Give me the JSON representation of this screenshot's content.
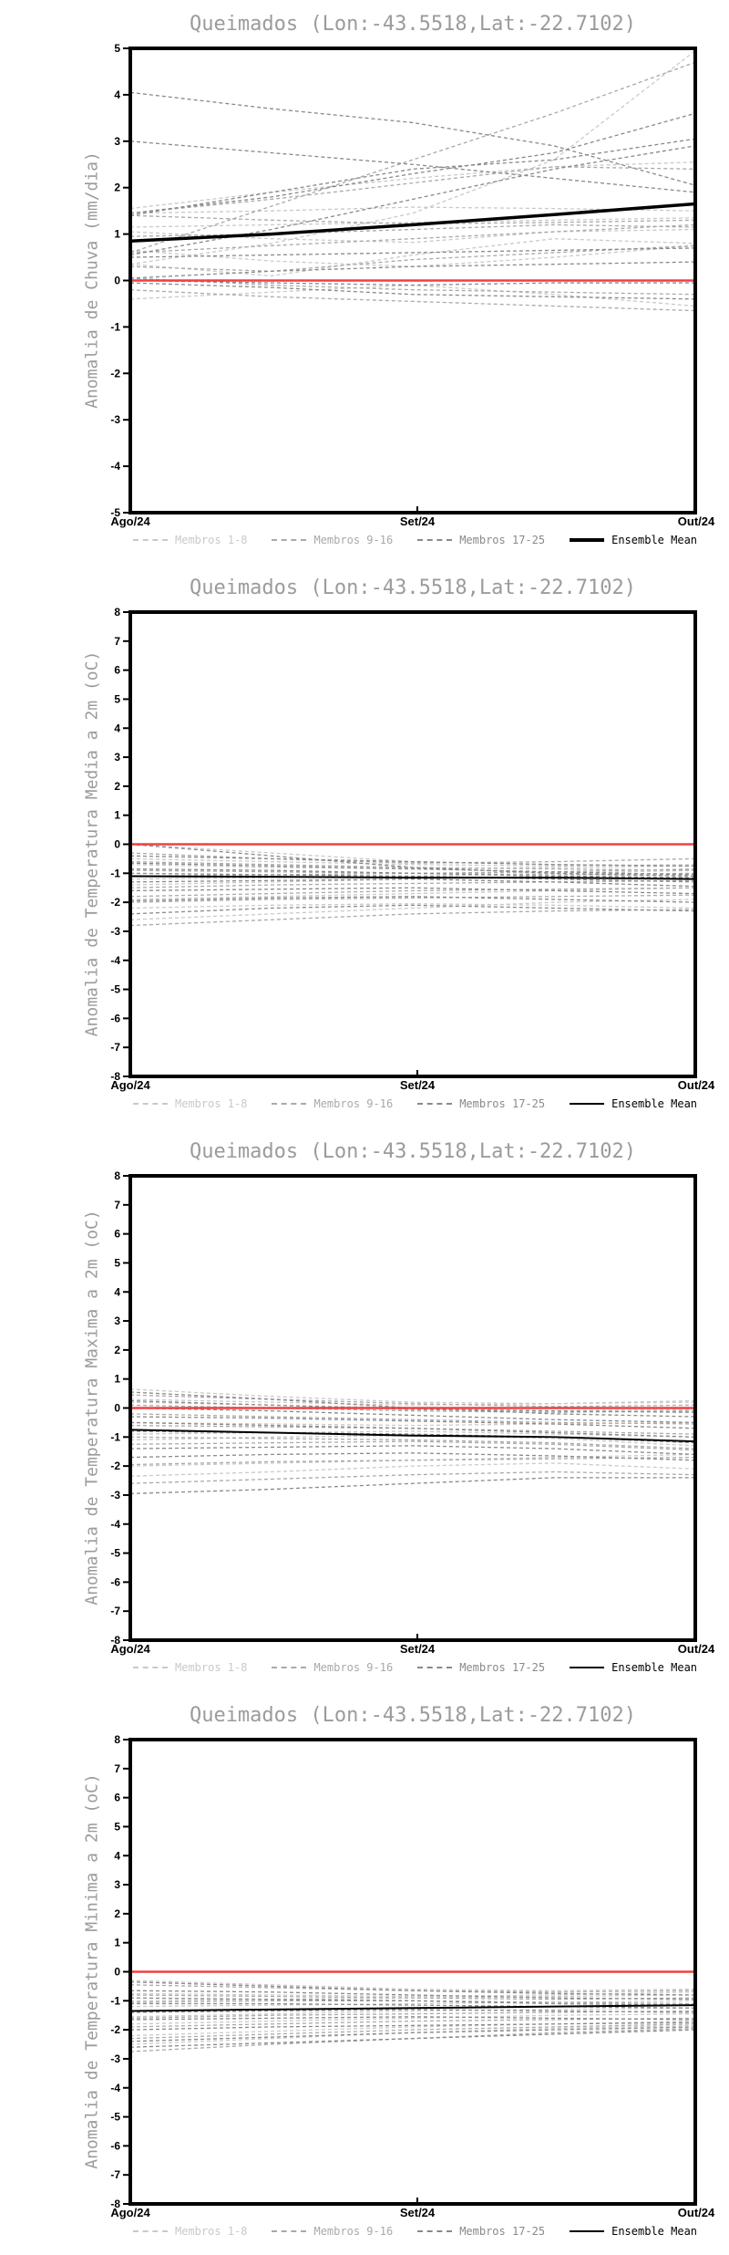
{
  "page": {
    "background": "#ffffff"
  },
  "colors": {
    "title": "#9b9b9b",
    "frame": "#000000",
    "tick_text": "#000000",
    "zero_line": "#f0403f",
    "members_1_8": "#c9c9c9",
    "members_9_16": "#a9a9a9",
    "members_17_25": "#898989",
    "ensemble_mean": "#000000"
  },
  "legend": {
    "items": [
      {
        "label": "Membros 1-8",
        "color": "#c9c9c9",
        "style": "dashed"
      },
      {
        "label": "Membros 9-16",
        "color": "#a9a9a9",
        "style": "dashed"
      },
      {
        "label": "Membros 17-25",
        "color": "#898989",
        "style": "dashed"
      },
      {
        "label": "Ensemble Mean",
        "color": "#000000",
        "style": "solid"
      }
    ]
  },
  "chart_data": [
    {
      "type": "line",
      "title": "Queimados (Lon:-43.5518,Lat:-22.7102)",
      "ylabel": "Anomalia de Chuva (mm/dia)",
      "ylim": [
        -5,
        5
      ],
      "ytick_step": 1,
      "x_ticklabels": [
        "Ago/24",
        "Set/24",
        "Out/24"
      ],
      "x_tick_pos": [
        0,
        0.508,
        1
      ],
      "zero_line": 0,
      "grid": false,
      "legend_position": "bottom",
      "mean_width": 3.5,
      "groups": [
        {
          "name": "Membros 1-8",
          "color": "#c9c9c9",
          "lines": [
            [
              1.55,
              1.9,
              2.2,
              2.45,
              2.55
            ],
            [
              1.45,
              1.5,
              1.58,
              1.55,
              1.5
            ],
            [
              0.35,
              0.8,
              1.45,
              2.6,
              4.95
            ],
            [
              1.15,
              1.2,
              1.25,
              1.3,
              1.35
            ],
            [
              1.05,
              0.9,
              0.82,
              1.05,
              1.1
            ],
            [
              0.65,
              0.42,
              0.3,
              0.5,
              0.75
            ],
            [
              0.35,
              0.1,
              0.55,
              0.9,
              0.8
            ],
            [
              -0.4,
              -0.25,
              -0.1,
              -0.3,
              -0.55
            ]
          ]
        },
        {
          "name": "Membros 9-16",
          "color": "#a9a9a9",
          "lines": [
            [
              1.45,
              1.75,
              2.1,
              2.45,
              2.4
            ],
            [
              1.4,
              1.3,
              1.22,
              1.25,
              1.3
            ],
            [
              0.6,
              1.6,
              2.6,
              3.6,
              4.7
            ],
            [
              0.95,
              1.0,
              1.1,
              1.2,
              1.15
            ],
            [
              0.6,
              0.75,
              0.9,
              1.05,
              1.2
            ],
            [
              0.3,
              0.2,
              0.45,
              0.6,
              0.75
            ],
            [
              0.05,
              -0.1,
              -0.2,
              -0.25,
              -0.3
            ],
            [
              -0.2,
              -0.35,
              -0.45,
              -0.55,
              -0.65
            ]
          ]
        },
        {
          "name": "Membros 17-25",
          "color": "#898989",
          "lines": [
            [
              4.05,
              3.7,
              3.4,
              2.9,
              2.05
            ],
            [
              3.0,
              2.75,
              2.5,
              2.2,
              1.9
            ],
            [
              1.45,
              1.8,
              2.3,
              2.75,
              3.6
            ],
            [
              1.4,
              1.9,
              2.4,
              2.6,
              3.05
            ],
            [
              0.55,
              1.1,
              1.75,
              2.4,
              2.9
            ],
            [
              0.5,
              0.55,
              0.6,
              0.65,
              0.7
            ],
            [
              0.05,
              0.2,
              0.3,
              0.35,
              0.4
            ],
            [
              0.0,
              -0.05,
              -0.1,
              -0.05,
              -0.05
            ],
            [
              -0.05,
              -0.15,
              -0.3,
              -0.35,
              -0.4
            ]
          ]
        }
      ],
      "mean": {
        "name": "Ensemble Mean",
        "color": "#000000",
        "values": [
          0.85,
          1.0,
          1.2,
          1.42,
          1.65
        ]
      }
    },
    {
      "type": "line",
      "title": "Queimados (Lon:-43.5518,Lat:-22.7102)",
      "ylabel": "Anomalia de Temperatura Media a 2m (oC)",
      "ylim": [
        -8,
        8
      ],
      "ytick_step": 1,
      "x_ticklabels": [
        "Ago/24",
        "Set/24",
        "Out/24"
      ],
      "x_tick_pos": [
        0,
        0.508,
        1
      ],
      "zero_line": 0,
      "grid": false,
      "legend_position": "bottom",
      "mean_width": 2,
      "groups": [
        {
          "name": "Membros 1-8",
          "color": "#c9c9c9",
          "lines": [
            [
              0.0,
              -0.3,
              -0.6,
              -0.7,
              -0.75
            ],
            [
              -0.5,
              -0.6,
              -0.7,
              -0.75,
              -0.7
            ],
            [
              -0.7,
              -0.8,
              -0.85,
              -0.8,
              -0.75
            ],
            [
              -1.2,
              -1.15,
              -1.1,
              -1.0,
              -0.9
            ],
            [
              -1.4,
              -1.3,
              -1.2,
              -1.1,
              -1.05
            ],
            [
              -1.9,
              -1.8,
              -1.7,
              -1.6,
              -1.5
            ],
            [
              -2.2,
              -2.1,
              -2.05,
              -2.1,
              -2.2
            ],
            [
              -2.6,
              -2.4,
              -2.2,
              -2.0,
              -1.9
            ]
          ]
        },
        {
          "name": "Membros 9-16",
          "color": "#a9a9a9",
          "lines": [
            [
              -0.3,
              -0.5,
              -0.65,
              -0.6,
              -0.5
            ],
            [
              -0.6,
              -0.7,
              -0.8,
              -0.85,
              -0.9
            ],
            [
              -0.9,
              -0.95,
              -1.0,
              -1.05,
              -1.0
            ],
            [
              -1.1,
              -1.05,
              -1.0,
              -0.95,
              -0.85
            ],
            [
              -1.5,
              -1.4,
              -1.35,
              -1.3,
              -1.25
            ],
            [
              -1.8,
              -1.7,
              -1.6,
              -1.55,
              -1.5
            ],
            [
              -2.0,
              -1.9,
              -1.85,
              -1.8,
              -1.75
            ],
            [
              -2.8,
              -2.6,
              -2.4,
              -2.3,
              -2.25
            ]
          ]
        },
        {
          "name": "Membros 17-25",
          "color": "#898989",
          "lines": [
            [
              0.0,
              -0.4,
              -0.8,
              -1.0,
              -1.1
            ],
            [
              -0.4,
              -0.5,
              -0.6,
              -0.7,
              -0.75
            ],
            [
              -0.65,
              -0.75,
              -0.85,
              -0.95,
              -1.05
            ],
            [
              -0.85,
              -0.9,
              -1.0,
              -1.1,
              -1.15
            ],
            [
              -1.0,
              -1.05,
              -1.1,
              -1.2,
              -1.3
            ],
            [
              -1.3,
              -1.25,
              -1.2,
              -1.3,
              -1.45
            ],
            [
              -1.6,
              -1.55,
              -1.5,
              -1.6,
              -1.7
            ],
            [
              -1.95,
              -1.85,
              -1.8,
              -1.9,
              -2.0
            ],
            [
              -2.4,
              -2.2,
              -2.1,
              -2.2,
              -2.3
            ]
          ]
        }
      ],
      "mean": {
        "name": "Ensemble Mean",
        "color": "#000000",
        "values": [
          -1.1,
          -1.12,
          -1.15,
          -1.15,
          -1.2
        ]
      }
    },
    {
      "type": "line",
      "title": "Queimados (Lon:-43.5518,Lat:-22.7102)",
      "ylabel": "Anomalia de Temperatura Maxima a 2m (oC)",
      "ylim": [
        -8,
        8
      ],
      "ytick_step": 1,
      "x_ticklabels": [
        "Ago/24",
        "Set/24",
        "Out/24"
      ],
      "x_tick_pos": [
        0,
        0.508,
        1
      ],
      "zero_line": 0,
      "grid": false,
      "legend_position": "bottom",
      "mean_width": 2,
      "groups": [
        {
          "name": "Membros 1-8",
          "color": "#c9c9c9",
          "lines": [
            [
              0.65,
              0.4,
              0.2,
              0.15,
              0.2
            ],
            [
              0.3,
              0.2,
              0.1,
              0.15,
              0.25
            ],
            [
              0.2,
              0.1,
              0.0,
              -0.1,
              -0.05
            ],
            [
              -0.5,
              -0.55,
              -0.6,
              -0.55,
              -0.5
            ],
            [
              -0.9,
              -0.85,
              -0.8,
              -0.9,
              -1.0
            ],
            [
              -1.1,
              -1.0,
              -0.95,
              -1.05,
              -1.3
            ],
            [
              -2.0,
              -1.9,
              -1.8,
              -1.7,
              -1.6
            ],
            [
              -2.35,
              -2.2,
              -2.0,
              -1.9,
              -2.1
            ]
          ]
        },
        {
          "name": "Membros 9-16",
          "color": "#a9a9a9",
          "lines": [
            [
              0.45,
              0.3,
              0.15,
              0.05,
              0.1
            ],
            [
              0.1,
              0.0,
              -0.1,
              -0.15,
              -0.1
            ],
            [
              -0.2,
              -0.3,
              -0.4,
              -0.5,
              -0.55
            ],
            [
              -0.6,
              -0.65,
              -0.7,
              -0.8,
              -0.9
            ],
            [
              -1.0,
              -1.05,
              -1.1,
              -1.2,
              -1.4
            ],
            [
              -1.25,
              -1.2,
              -1.15,
              -1.25,
              -1.45
            ],
            [
              -1.95,
              -1.85,
              -1.8,
              -1.75,
              -1.7
            ],
            [
              -2.6,
              -2.45,
              -2.3,
              -2.2,
              -2.3
            ]
          ]
        },
        {
          "name": "Membros 17-25",
          "color": "#898989",
          "lines": [
            [
              0.55,
              0.3,
              0.0,
              -0.2,
              -0.3
            ],
            [
              0.25,
              0.1,
              -0.05,
              -0.1,
              -0.15
            ],
            [
              0.0,
              -0.1,
              -0.25,
              -0.4,
              -0.5
            ],
            [
              -0.3,
              -0.35,
              -0.45,
              -0.55,
              -0.7
            ],
            [
              -0.5,
              -0.6,
              -0.7,
              -0.85,
              -1.0
            ],
            [
              -0.8,
              -0.85,
              -0.9,
              -1.0,
              -1.2
            ],
            [
              -1.4,
              -1.35,
              -1.3,
              -1.4,
              -1.6
            ],
            [
              -1.7,
              -1.6,
              -1.55,
              -1.65,
              -1.8
            ],
            [
              -2.95,
              -2.8,
              -2.6,
              -2.4,
              -2.4
            ]
          ]
        }
      ],
      "mean": {
        "name": "Ensemble Mean",
        "color": "#000000",
        "values": [
          -0.75,
          -0.85,
          -0.95,
          -1.0,
          -1.15
        ]
      }
    },
    {
      "type": "line",
      "title": "Queimados (Lon:-43.5518,Lat:-22.7102)",
      "ylabel": "Anomalia de Temperatura Minima a 2m (oC)",
      "ylim": [
        -8,
        8
      ],
      "ytick_step": 1,
      "x_ticklabels": [
        "Ago/24",
        "Set/24",
        "Out/24"
      ],
      "x_tick_pos": [
        0,
        0.508,
        1
      ],
      "zero_line": 0,
      "grid": false,
      "legend_position": "bottom",
      "mean_width": 2,
      "groups": [
        {
          "name": "Membros 1-8",
          "color": "#c9c9c9",
          "lines": [
            [
              -0.3,
              -0.45,
              -0.6,
              -0.65,
              -0.6
            ],
            [
              -0.75,
              -0.8,
              -0.85,
              -0.8,
              -0.7
            ],
            [
              -1.0,
              -0.95,
              -0.9,
              -0.85,
              -0.8
            ],
            [
              -1.2,
              -1.15,
              -1.1,
              -1.05,
              -1.0
            ],
            [
              -1.55,
              -1.45,
              -1.35,
              -1.3,
              -1.25
            ],
            [
              -1.8,
              -1.7,
              -1.6,
              -1.5,
              -1.45
            ],
            [
              -2.2,
              -2.05,
              -1.9,
              -1.8,
              -1.7
            ],
            [
              -2.5,
              -2.3,
              -2.1,
              -1.95,
              -1.85
            ]
          ]
        },
        {
          "name": "Membros 9-16",
          "color": "#a9a9a9",
          "lines": [
            [
              -0.45,
              -0.55,
              -0.65,
              -0.7,
              -0.65
            ],
            [
              -0.8,
              -0.85,
              -0.9,
              -0.95,
              -0.9
            ],
            [
              -1.05,
              -1.0,
              -1.0,
              -1.05,
              -1.1
            ],
            [
              -1.35,
              -1.3,
              -1.25,
              -1.2,
              -1.15
            ],
            [
              -1.6,
              -1.5,
              -1.45,
              -1.4,
              -1.35
            ],
            [
              -1.9,
              -1.8,
              -1.7,
              -1.65,
              -1.6
            ],
            [
              -2.3,
              -2.15,
              -2.0,
              -1.9,
              -1.8
            ],
            [
              -2.75,
              -2.5,
              -2.3,
              -2.1,
              -1.95
            ]
          ]
        },
        {
          "name": "Membros 17-25",
          "color": "#898989",
          "lines": [
            [
              -0.35,
              -0.5,
              -0.65,
              -0.75,
              -0.8
            ],
            [
              -0.65,
              -0.7,
              -0.8,
              -0.9,
              -0.95
            ],
            [
              -0.9,
              -0.95,
              -1.0,
              -1.1,
              -1.15
            ],
            [
              -1.1,
              -1.1,
              -1.15,
              -1.2,
              -1.25
            ],
            [
              -1.4,
              -1.35,
              -1.3,
              -1.35,
              -1.4
            ],
            [
              -1.65,
              -1.6,
              -1.55,
              -1.6,
              -1.65
            ],
            [
              -2.0,
              -1.9,
              -1.85,
              -1.8,
              -1.75
            ],
            [
              -2.4,
              -2.25,
              -2.1,
              -2.0,
              -1.9
            ],
            [
              -2.6,
              -2.45,
              -2.3,
              -2.15,
              -2.0
            ]
          ]
        }
      ],
      "mean": {
        "name": "Ensemble Mean",
        "color": "#000000",
        "values": [
          -1.35,
          -1.3,
          -1.25,
          -1.2,
          -1.15
        ]
      }
    }
  ]
}
